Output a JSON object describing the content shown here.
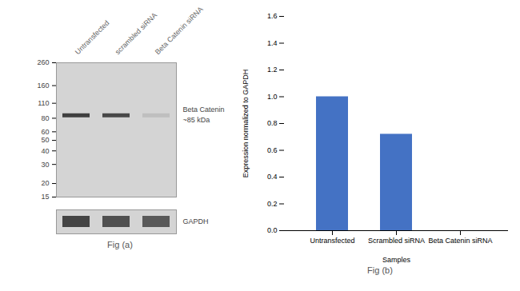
{
  "chart_data": [
    {
      "type": "blot",
      "title": "Fig (a)",
      "categories": [
        "Untransfected",
        "scrambled siRNA",
        "Beta Catenin siRNA"
      ],
      "values": [
        85,
        85,
        85
      ],
      "log": "y",
      "ylim": [
        15,
        260
      ],
      "yticks": [
        260,
        160,
        110,
        80,
        60,
        50,
        40,
        30,
        20,
        15
      ],
      "annotations": [
        "Beta Catenin",
        "~85 kDa",
        "GAPDH"
      ],
      "grid": false
    },
    {
      "type": "bar",
      "title": "Fig (b)",
      "categories": [
        "Untransfected",
        "Scrambled siRNA",
        "Beta Catenin siRNA"
      ],
      "values": [
        1.0,
        0.72,
        0.0
      ],
      "color": "#4472c4",
      "xlabel": "Samples",
      "ylabel": "Expression normalized to GAPDH",
      "ylim": [
        0,
        1.6
      ],
      "yticks": [
        {
          "value": 0,
          "label": "0.0"
        },
        0.2,
        0.4,
        0.6,
        0.8,
        {
          "value": 1,
          "label": "1.0"
        },
        1.2,
        1.4,
        1.6
      ],
      "grid": false
    }
  ]
}
